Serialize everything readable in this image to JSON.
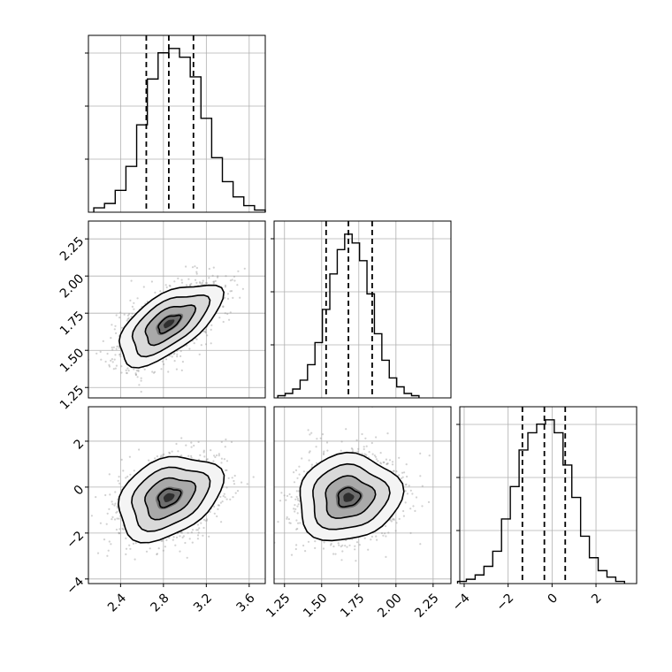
{
  "chart_data": [
    {
      "type": "histogram",
      "panel": "p1-marginal",
      "x": [
        2.2,
        2.3,
        2.4,
        2.5,
        2.6,
        2.7,
        2.8,
        2.9,
        3.0,
        3.1,
        3.2,
        3.3,
        3.4,
        3.5,
        3.6,
        3.7
      ],
      "values": [
        2,
        4,
        10,
        21,
        40,
        61,
        73,
        75,
        71,
        62,
        43,
        25,
        14,
        7,
        3,
        1
      ],
      "quantile_lines": [
        2.64,
        2.85,
        3.08
      ],
      "xlim": [
        2.1,
        3.75
      ],
      "x_ticks": [
        "2.4",
        "2.8",
        "3.2",
        "3.6"
      ],
      "grid": true
    },
    {
      "type": "scatter-contour",
      "panel": "p2-vs-p1",
      "x_range": [
        2.1,
        3.75
      ],
      "y_range": [
        1.18,
        2.37
      ],
      "center": [
        2.85,
        1.68
      ],
      "density_levels": [
        "0.5",
        "1.0",
        "1.5",
        "2.0 sigma"
      ],
      "y_ticks": [
        "1.25",
        "1.50",
        "1.75",
        "2.00",
        "2.25"
      ],
      "grid": true
    },
    {
      "type": "histogram",
      "panel": "p2-marginal",
      "x": [
        1.23,
        1.28,
        1.33,
        1.38,
        1.43,
        1.48,
        1.53,
        1.58,
        1.63,
        1.68,
        1.73,
        1.78,
        1.83,
        1.88,
        1.93,
        1.98,
        2.03,
        2.08,
        2.13
      ],
      "values": [
        1,
        2,
        4,
        8,
        15,
        25,
        40,
        56,
        67,
        74,
        70,
        62,
        47,
        29,
        17,
        9,
        5,
        2,
        1
      ],
      "quantile_lines": [
        1.53,
        1.68,
        1.84
      ],
      "xlim": [
        1.18,
        2.37
      ],
      "x_ticks": [
        "1.25",
        "1.50",
        "1.75",
        "2.00",
        "2.25"
      ],
      "grid": true
    },
    {
      "type": "scatter-contour",
      "panel": "p3-vs-p1",
      "x_range": [
        2.1,
        3.75
      ],
      "y_range": [
        -4.2,
        3.5
      ],
      "center": [
        2.85,
        -0.45
      ],
      "density_levels": [
        "0.5",
        "1.0",
        "1.5",
        "2.0 sigma"
      ],
      "y_ticks": [
        "−4",
        "−2",
        "0",
        "2"
      ],
      "x_ticks": [
        "2.4",
        "2.8",
        "3.2",
        "3.6"
      ],
      "grid": true
    },
    {
      "type": "scatter-contour",
      "panel": "p3-vs-p2",
      "x_range": [
        1.18,
        2.37
      ],
      "y_range": [
        -4.2,
        3.5
      ],
      "center": [
        1.68,
        -0.45
      ],
      "density_levels": [
        "0.5",
        "1.0",
        "1.5",
        "2.0 sigma"
      ],
      "x_ticks": [
        "1.25",
        "1.50",
        "1.75",
        "2.00",
        "2.25"
      ],
      "grid": true
    },
    {
      "type": "histogram",
      "panel": "p3-marginal",
      "x": [
        -4.1,
        -3.7,
        -3.3,
        -2.9,
        -2.5,
        -2.1,
        -1.7,
        -1.3,
        -0.9,
        -0.5,
        -0.1,
        0.3,
        0.7,
        1.1,
        1.5,
        1.9,
        2.3,
        2.7,
        3.1
      ],
      "values": [
        1,
        2,
        4,
        8,
        15,
        30,
        45,
        62,
        70,
        74,
        76,
        70,
        55,
        40,
        22,
        12,
        6,
        3,
        1
      ],
      "quantile_lines": [
        -1.35,
        -0.35,
        0.6
      ],
      "xlim": [
        -4.2,
        3.85
      ],
      "x_ticks": [
        "−4",
        "−2",
        "0",
        "2"
      ],
      "grid": true
    }
  ]
}
